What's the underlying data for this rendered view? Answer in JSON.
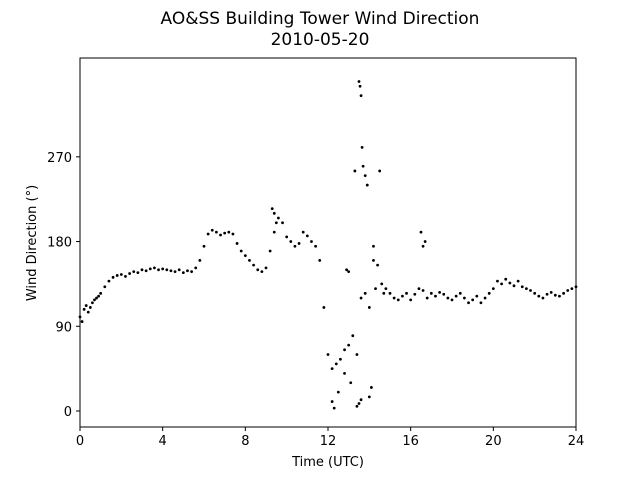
{
  "chart_data": {
    "type": "scatter",
    "title": "AO&SS Building Tower Wind Direction",
    "subtitle": "2010-05-20",
    "xlabel": "Time (UTC)",
    "ylabel": "Wind Direction (°)",
    "xlim": [
      0,
      24
    ],
    "ylim": [
      -17,
      375
    ],
    "xticks": [
      0,
      4,
      8,
      12,
      16,
      20,
      24
    ],
    "yticks": [
      0,
      90,
      180,
      270
    ],
    "grid": false,
    "marker_color": "#000000",
    "series": [
      {
        "x": [
          0.0,
          0.1,
          0.2,
          0.3,
          0.4,
          0.5,
          0.6,
          0.7,
          0.8,
          0.9,
          1.0,
          1.2,
          1.4,
          1.6,
          1.8,
          2.0,
          2.2,
          2.4,
          2.6,
          2.8,
          3.0,
          3.2,
          3.4,
          3.6,
          3.8,
          4.0,
          4.2,
          4.4,
          4.6,
          4.8,
          5.0,
          5.2,
          5.4,
          5.6,
          5.8,
          6.0,
          6.2,
          6.4,
          6.6,
          6.8,
          7.0,
          7.2,
          7.4,
          7.6,
          7.8,
          8.0,
          8.2,
          8.4,
          8.6,
          8.8,
          9.0,
          9.2,
          9.4,
          9.6,
          9.8,
          10.0,
          10.2,
          10.4,
          10.6,
          10.8,
          11.0,
          11.2,
          11.4,
          11.6,
          11.8,
          12.0,
          12.2,
          12.4,
          12.6,
          12.8,
          13.0,
          13.2,
          13.4,
          13.6,
          13.8,
          14.0,
          14.2,
          14.4,
          14.6,
          14.8,
          15.0,
          15.2,
          15.4,
          15.6,
          15.8,
          16.0,
          16.2,
          16.4,
          16.6,
          16.8,
          17.0,
          17.2,
          17.4,
          17.6,
          17.8,
          18.0,
          18.2,
          18.4,
          18.6,
          18.8,
          19.0,
          19.2,
          19.4,
          19.6,
          19.8,
          20.0,
          20.2,
          20.4,
          20.6,
          20.8,
          21.0,
          21.2,
          21.4,
          21.6,
          21.8,
          22.0,
          22.2,
          22.4,
          22.6,
          22.8,
          23.0,
          23.2,
          23.4,
          23.6,
          23.8,
          24.0
        ],
        "y": [
          100,
          95,
          108,
          112,
          105,
          110,
          115,
          118,
          120,
          122,
          125,
          132,
          138,
          142,
          144,
          145,
          143,
          146,
          148,
          147,
          150,
          149,
          151,
          152,
          150,
          151,
          150,
          149,
          148,
          150,
          147,
          149,
          148,
          152,
          160,
          175,
          188,
          192,
          190,
          187,
          189,
          190,
          188,
          178,
          170,
          165,
          160,
          155,
          150,
          148,
          152,
          170,
          190,
          205,
          200,
          185,
          180,
          175,
          178,
          190,
          186,
          180,
          175,
          160,
          110,
          60,
          45,
          50,
          55,
          65,
          70,
          80,
          60,
          120,
          125,
          110,
          160,
          155,
          135,
          130,
          125,
          120,
          118,
          122,
          125,
          118,
          124,
          130,
          128,
          120,
          125,
          122,
          126,
          124,
          120,
          118,
          122,
          125,
          120,
          115,
          118,
          122,
          115,
          120,
          125,
          130,
          138,
          135,
          140,
          136,
          133,
          138,
          132,
          130,
          128,
          125,
          122,
          120,
          124,
          126,
          123,
          122,
          125,
          128,
          130,
          132
        ],
        "extra_points": {
          "x": [
            9.3,
            9.4,
            9.5,
            12.2,
            12.3,
            12.5,
            12.8,
            13.1,
            13.3,
            13.5,
            13.55,
            13.6,
            13.65,
            13.7,
            13.8,
            13.9,
            14.0,
            14.1,
            14.3,
            14.5,
            14.7,
            16.5,
            16.6,
            16.7,
            13.4,
            13.5,
            13.6,
            14.2,
            13.0,
            12.9
          ],
          "y": [
            215,
            210,
            200,
            10,
            3,
            20,
            40,
            30,
            255,
            350,
            345,
            335,
            280,
            260,
            250,
            240,
            15,
            25,
            130,
            255,
            125,
            190,
            175,
            180,
            5,
            8,
            12,
            175,
            148,
            150
          ]
        }
      }
    ]
  }
}
